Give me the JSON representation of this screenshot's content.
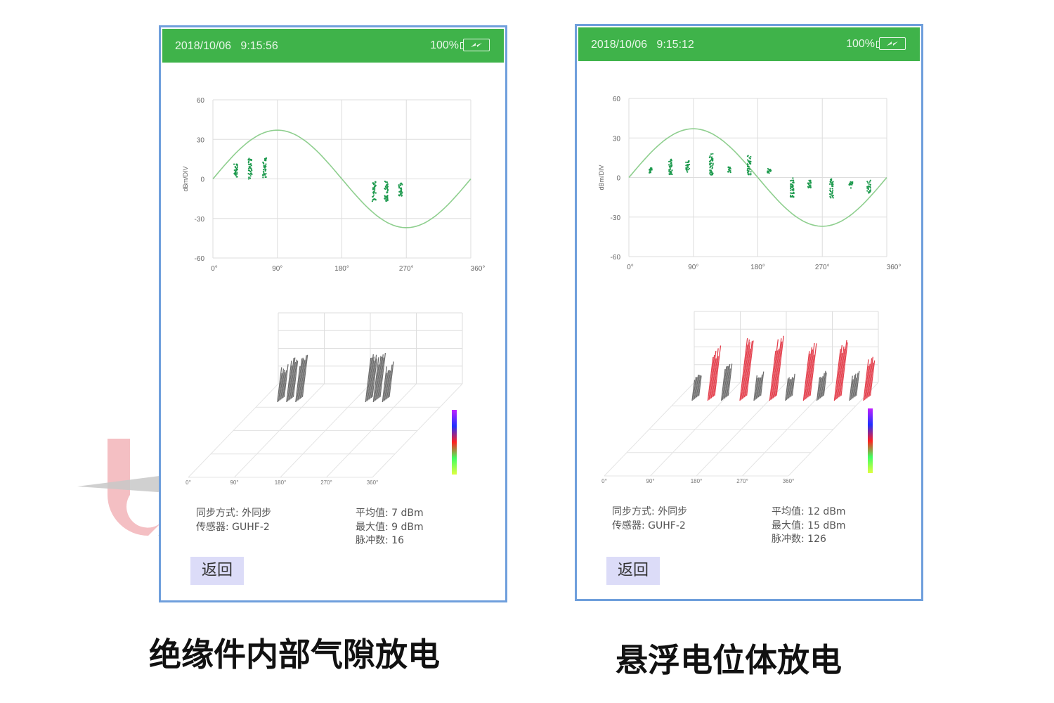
{
  "colors": {
    "header": "#3fb34a",
    "border": "#6f9fdc",
    "scatter": "#1e9a4e",
    "sine": "#8fcf8f",
    "button": "#dcdcf8",
    "bar_gray": "#555555",
    "bar_red": "#e02030"
  },
  "panels": [
    {
      "date": "2018/10/06",
      "time": "9:15:56",
      "battery": "100%",
      "battery_icon": "battery-charging-icon",
      "sync_label": "同步方式: 外同步",
      "sensor_label": "传感器: GUHF-2",
      "avg_label": "平均值: 7 dBm",
      "max_label": "最大值: 9 dBm",
      "pulse_label": "脉冲数: 16",
      "back_button": "返回",
      "caption": "绝缘件内部气隙放电",
      "chart": {
        "ylabel": "dBm/DIV",
        "yticks": [
          "60",
          "30",
          "0",
          "-30",
          "-60"
        ],
        "xticks": [
          "0°",
          "90°",
          "180°",
          "270°",
          "360°"
        ],
        "ylim": [
          -60,
          60
        ],
        "xlim": [
          0,
          360
        ],
        "sine_amplitude": 37,
        "clusters": [
          {
            "phase": 32,
            "min": 1,
            "max": 12,
            "color": "gray"
          },
          {
            "phase": 52,
            "min": 0,
            "max": 16,
            "color": "gray"
          },
          {
            "phase": 72,
            "min": 1,
            "max": 16,
            "color": "gray"
          },
          {
            "phase": 225,
            "min": -17,
            "max": -2,
            "color": "gray"
          },
          {
            "phase": 242,
            "min": -17,
            "max": -1,
            "color": "gray"
          },
          {
            "phase": 262,
            "min": -13,
            "max": -3,
            "color": "gray"
          }
        ]
      },
      "prps_xticks": [
        "0°",
        "90°",
        "180°",
        "270°",
        "360°"
      ]
    },
    {
      "date": "2018/10/06",
      "time": "9:15:12",
      "battery": "100%",
      "battery_icon": "battery-charging-icon",
      "sync_label": "同步方式: 外同步",
      "sensor_label": "传感器: GUHF-2",
      "avg_label": "平均值: 12 dBm",
      "max_label": "最大值: 15 dBm",
      "pulse_label": "脉冲数: 126",
      "back_button": "返回",
      "caption": "悬浮电位体放电",
      "chart": {
        "ylabel": "dBm/DIV",
        "yticks": [
          "60",
          "30",
          "0",
          "-30",
          "-60"
        ],
        "xticks": [
          "0°",
          "90°",
          "180°",
          "270°",
          "360°"
        ],
        "ylim": [
          -60,
          60
        ],
        "xlim": [
          0,
          360
        ],
        "sine_amplitude": 37,
        "clusters": [
          {
            "phase": 30,
            "min": 3,
            "max": 8,
            "color": "gray"
          },
          {
            "phase": 58,
            "min": 2,
            "max": 14,
            "color": "red"
          },
          {
            "phase": 82,
            "min": 4,
            "max": 13,
            "color": "gray"
          },
          {
            "phase": 115,
            "min": 2,
            "max": 18,
            "color": "red"
          },
          {
            "phase": 140,
            "min": 3,
            "max": 8,
            "color": "gray"
          },
          {
            "phase": 168,
            "min": 2,
            "max": 17,
            "color": "red"
          },
          {
            "phase": 196,
            "min": 2,
            "max": 7,
            "color": "gray"
          },
          {
            "phase": 228,
            "min": -15,
            "max": 0,
            "color": "red"
          },
          {
            "phase": 252,
            "min": -8,
            "max": -2,
            "color": "gray"
          },
          {
            "phase": 283,
            "min": -16,
            "max": -1,
            "color": "red"
          },
          {
            "phase": 310,
            "min": -8,
            "max": -3,
            "color": "gray"
          },
          {
            "phase": 335,
            "min": -12,
            "max": -2,
            "color": "red"
          }
        ]
      },
      "prps_xticks": [
        "0°",
        "90°",
        "180°",
        "270°",
        "360°"
      ]
    }
  ]
}
